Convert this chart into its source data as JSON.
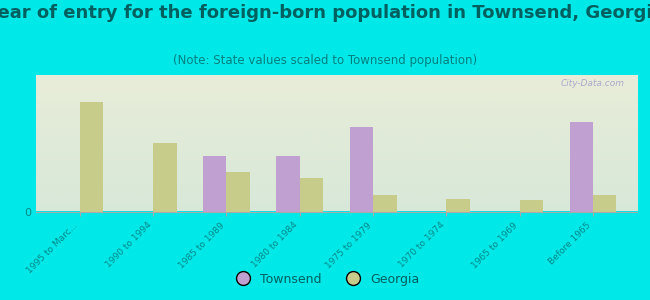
{
  "title": "Year of entry for the foreign-born population in Townsend, Georgia",
  "subtitle": "(Note: State values scaled to Townsend population)",
  "categories": [
    "1995 to Marc...",
    "1990 to 1994",
    "1985 to 1989",
    "1980 to 1984",
    "1975 to 1979",
    "1970 to 1974",
    "1965 to 1969",
    "Before 1965"
  ],
  "townsend_values": [
    0,
    0,
    45,
    45,
    68,
    0,
    0,
    72
  ],
  "georgia_values": [
    88,
    55,
    32,
    27,
    13,
    10,
    9,
    13
  ],
  "townsend_color": "#c0a0d0",
  "georgia_color": "#c8cc8a",
  "background_top": "#e8edd8",
  "background_bottom": "#d8e8d8",
  "outer_bg": "#00e8e8",
  "title_fontsize": 13,
  "subtitle_fontsize": 8.5,
  "title_color": "#006060",
  "subtitle_color": "#008080",
  "ylabel_zero": "0",
  "tick_color": "#008888",
  "watermark": "City-Data.com"
}
